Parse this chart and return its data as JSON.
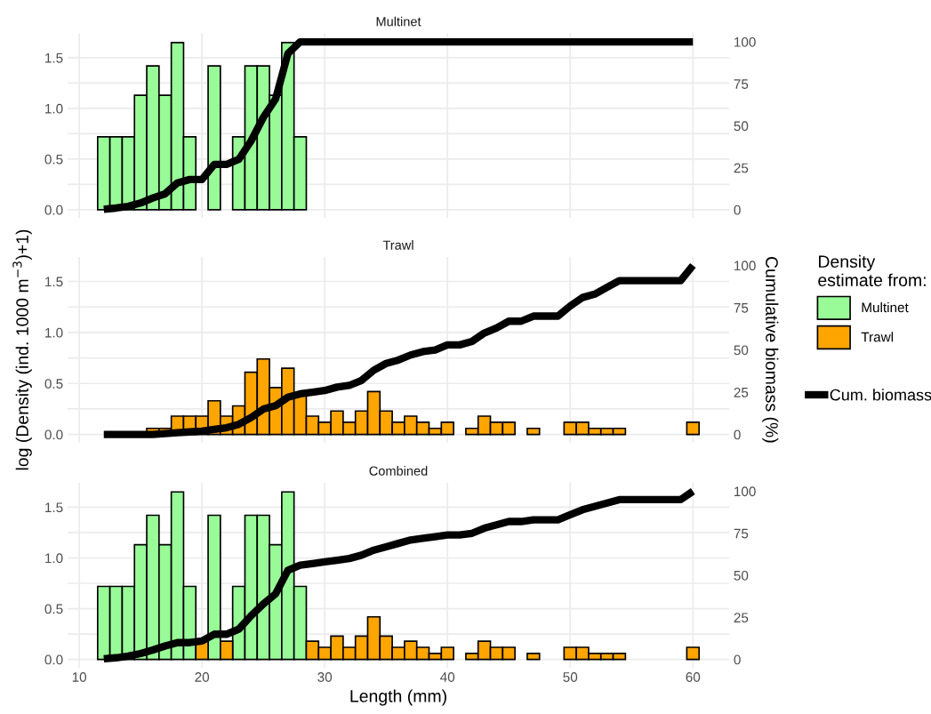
{
  "chart_data": [
    {
      "type": "bar",
      "title": "Multinet",
      "x": [
        12,
        13,
        14,
        15,
        16,
        17,
        18,
        19,
        20,
        21,
        22,
        23,
        24,
        25,
        26,
        27,
        28,
        29,
        30,
        31,
        32,
        33,
        34,
        35,
        36,
        37,
        38,
        39,
        40,
        41,
        42,
        43,
        44,
        45,
        46,
        47,
        48,
        49,
        50,
        51,
        52,
        53,
        54,
        55,
        56,
        57,
        58,
        59,
        60
      ],
      "xlim": [
        9.05,
        62.95
      ],
      "xticks": [
        10,
        20,
        30,
        40,
        50,
        60
      ],
      "ylim": [
        -0.08,
        1.74
      ],
      "yticks": [
        {
          "value": 0,
          "label": "0.0"
        },
        {
          "value": 0.5,
          "label": "0.5"
        },
        {
          "value": 1,
          "label": "1.0"
        },
        {
          "value": 1.5,
          "label": "1.5"
        }
      ],
      "y2lim": [
        -4.83,
        105
      ],
      "y2ticks": [
        0,
        25,
        50,
        75,
        100
      ],
      "grid": true,
      "tick_labels": "y",
      "series": [
        {
          "color": "#98fb98",
          "values": [
            0.72,
            0.72,
            0.72,
            1.13,
            1.42,
            1.13,
            1.65,
            0.72,
            null,
            1.42,
            null,
            0.72,
            1.42,
            1.42,
            1.13,
            1.65,
            0.72,
            null,
            null,
            null,
            null,
            null,
            null,
            null,
            null,
            null,
            null,
            null,
            null,
            null,
            null,
            null,
            null,
            null,
            null,
            null,
            null,
            null,
            null,
            null,
            null,
            null,
            null,
            null,
            null,
            null,
            null,
            null,
            null
          ]
        },
        {
          "type": "line",
          "axis": "y2",
          "color": "#000000",
          "values": [
            0.3,
            1,
            2,
            4,
            7,
            9.5,
            16,
            18,
            18,
            27,
            27,
            30,
            41,
            55,
            66,
            93,
            100,
            100,
            100,
            100,
            100,
            100,
            100,
            100,
            100,
            100,
            100,
            100,
            100,
            100,
            100,
            100,
            100,
            100,
            100,
            100,
            100,
            100,
            100,
            100,
            100,
            100,
            100,
            100,
            100,
            100,
            100,
            100,
            100
          ]
        }
      ]
    },
    {
      "type": "bar",
      "title": "Trawl",
      "ylabel": "log (Density (ind. 1000 m$^{−3}$)+1)",
      "y2label": "Cumulative biomass (%)",
      "x": [
        12,
        13,
        14,
        15,
        16,
        17,
        18,
        19,
        20,
        21,
        22,
        23,
        24,
        25,
        26,
        27,
        28,
        29,
        30,
        31,
        32,
        33,
        34,
        35,
        36,
        37,
        38,
        39,
        40,
        41,
        42,
        43,
        44,
        45,
        46,
        47,
        48,
        49,
        50,
        51,
        52,
        53,
        54,
        55,
        56,
        57,
        58,
        59,
        60
      ],
      "xlim": [
        9.05,
        62.95
      ],
      "xticks": [
        10,
        20,
        30,
        40,
        50,
        60
      ],
      "ylim": [
        -0.08,
        1.74
      ],
      "yticks": [
        {
          "value": 0,
          "label": "0.0"
        },
        {
          "value": 0.5,
          "label": "0.5"
        },
        {
          "value": 1,
          "label": "1.0"
        },
        {
          "value": 1.5,
          "label": "1.5"
        }
      ],
      "y2lim": [
        -4.83,
        105
      ],
      "y2ticks": [
        0,
        25,
        50,
        75,
        100
      ],
      "grid": true,
      "tick_labels": "y",
      "series": [
        {
          "color": "#ffa500",
          "values": [
            null,
            null,
            null,
            null,
            0.06,
            0.06,
            0.18,
            0.18,
            0.18,
            0.33,
            0.18,
            0.28,
            0.61,
            0.74,
            0.46,
            0.65,
            0.38,
            0.18,
            0.12,
            0.23,
            0.12,
            0.23,
            0.42,
            0.23,
            0.12,
            0.18,
            0.12,
            0.06,
            0.12,
            null,
            0.06,
            0.18,
            0.12,
            0.12,
            null,
            0.06,
            null,
            null,
            0.12,
            0.12,
            0.06,
            0.06,
            0.06,
            null,
            null,
            null,
            null,
            null,
            0.12
          ]
        },
        {
          "type": "line",
          "axis": "y2",
          "color": "#000000",
          "values": [
            0,
            0,
            0,
            0,
            0,
            0.5,
            1,
            1.5,
            2,
            3,
            4,
            6,
            10,
            15,
            17,
            22,
            24,
            25,
            26,
            28,
            29,
            32,
            38,
            42,
            44,
            47,
            49,
            50,
            53,
            53,
            55,
            60,
            63,
            67,
            67,
            70,
            70,
            70,
            76,
            81,
            83,
            87,
            91,
            91,
            91,
            91,
            91,
            91,
            100
          ]
        }
      ]
    },
    {
      "type": "bar",
      "title": "Combined",
      "xlabel": "Length (mm)",
      "legend_title": "Density\nestimate from:",
      "legend": "right",
      "x": [
        12,
        13,
        14,
        15,
        16,
        17,
        18,
        19,
        20,
        21,
        22,
        23,
        24,
        25,
        26,
        27,
        28,
        29,
        30,
        31,
        32,
        33,
        34,
        35,
        36,
        37,
        38,
        39,
        40,
        41,
        42,
        43,
        44,
        45,
        46,
        47,
        48,
        49,
        50,
        51,
        52,
        53,
        54,
        55,
        56,
        57,
        58,
        59,
        60
      ],
      "xlim": [
        9.05,
        62.95
      ],
      "xticks": [
        10,
        20,
        30,
        40,
        50,
        60
      ],
      "ylim": [
        -0.08,
        1.74
      ],
      "yticks": [
        {
          "value": 0,
          "label": "0.0"
        },
        {
          "value": 0.5,
          "label": "0.5"
        },
        {
          "value": 1,
          "label": "1.0"
        },
        {
          "value": 1.5,
          "label": "1.5"
        }
      ],
      "y2lim": [
        -4.83,
        105
      ],
      "y2ticks": [
        0,
        25,
        50,
        75,
        100
      ],
      "grid": true,
      "series": [
        {
          "name": "Multinet",
          "color": "#98fb98",
          "values": [
            0.72,
            0.72,
            0.72,
            1.13,
            1.42,
            1.13,
            1.65,
            0.72,
            null,
            1.42,
            null,
            0.72,
            1.42,
            1.42,
            1.13,
            1.65,
            0.72,
            null,
            null,
            null,
            null,
            null,
            null,
            null,
            null,
            null,
            null,
            null,
            null,
            null,
            null,
            null,
            null,
            null,
            null,
            null,
            null,
            null,
            null,
            null,
            null,
            null,
            null,
            null,
            null,
            null,
            null,
            null,
            null
          ]
        },
        {
          "name": "Trawl",
          "color": "#ffa500",
          "values": [
            null,
            null,
            null,
            null,
            null,
            null,
            null,
            null,
            0.18,
            null,
            0.18,
            null,
            null,
            null,
            null,
            null,
            null,
            0.18,
            0.12,
            0.23,
            0.12,
            0.23,
            0.42,
            0.23,
            0.12,
            0.18,
            0.12,
            0.06,
            0.12,
            null,
            0.06,
            0.18,
            0.12,
            0.12,
            null,
            0.06,
            null,
            null,
            0.12,
            0.12,
            0.06,
            0.06,
            0.06,
            null,
            null,
            null,
            null,
            null,
            0.12
          ]
        },
        {
          "name": "Cum. biomass",
          "type": "line",
          "axis": "y2",
          "color": "#000000",
          "values": [
            0.4,
            1,
            2,
            3.5,
            5.6,
            8,
            10,
            10,
            11,
            15,
            15,
            18,
            26,
            33,
            39,
            53,
            56,
            57,
            58,
            59,
            60,
            62,
            65,
            67,
            69,
            71,
            72,
            73,
            74,
            74,
            75,
            78,
            80,
            82,
            82,
            83,
            83,
            83,
            86,
            89,
            91,
            93,
            95,
            95,
            95,
            95,
            95,
            95,
            100
          ]
        }
      ]
    }
  ]
}
